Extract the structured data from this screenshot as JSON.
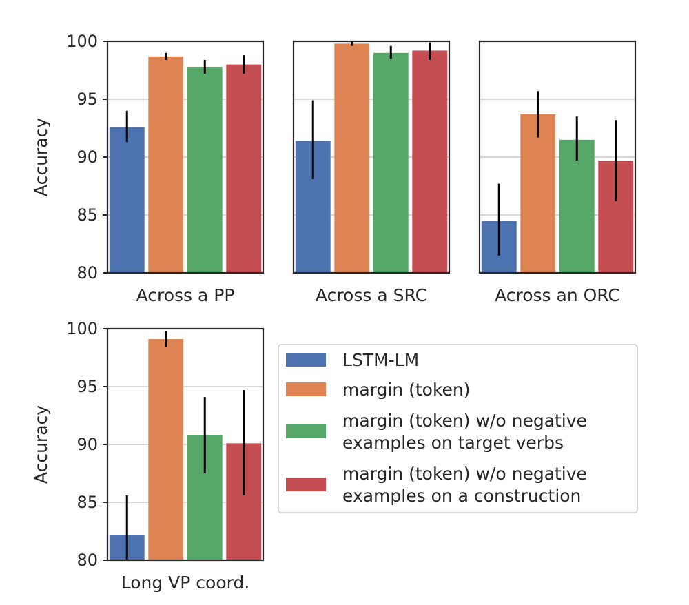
{
  "chart_data": {
    "type": "bar",
    "ylabel": "Accuracy",
    "ylim": [
      80,
      100
    ],
    "yticks": [
      80,
      85,
      90,
      95,
      100
    ],
    "grid": "horizontal",
    "legend_placement": "right of bottom panel",
    "series": [
      {
        "name": "LSTM-LM",
        "color": "#4c72b0"
      },
      {
        "name": "margin (token)",
        "color": "#dd8452"
      },
      {
        "name": "margin (token) w/o negative\nexamples on target verbs",
        "color": "#55a868"
      },
      {
        "name": "margin (token) w/o negative\nexamples on a construction",
        "color": "#c44e52"
      }
    ],
    "panels": [
      {
        "xlabel": "Across a PP",
        "values": [
          92.6,
          98.7,
          97.8,
          98.0
        ],
        "err_low": [
          91.3,
          98.4,
          97.2,
          97.2
        ],
        "err_high": [
          94.0,
          99.0,
          98.4,
          98.8
        ]
      },
      {
        "xlabel": "Across a SRC",
        "values": [
          91.4,
          99.8,
          99.0,
          99.2
        ],
        "err_low": [
          88.1,
          99.6,
          98.5,
          98.4
        ],
        "err_high": [
          94.9,
          100.0,
          99.6,
          99.9
        ]
      },
      {
        "xlabel": "Across an ORC",
        "values": [
          84.5,
          93.7,
          91.5,
          89.7
        ],
        "err_low": [
          81.5,
          91.7,
          89.7,
          86.2
        ],
        "err_high": [
          87.7,
          95.7,
          93.5,
          93.2
        ]
      },
      {
        "xlabel": "Long VP coord.",
        "values": [
          82.2,
          99.1,
          90.8,
          90.1
        ],
        "err_low": [
          80.0,
          98.4,
          87.5,
          85.6
        ],
        "err_high": [
          85.6,
          99.8,
          94.1,
          94.7
        ]
      }
    ]
  }
}
